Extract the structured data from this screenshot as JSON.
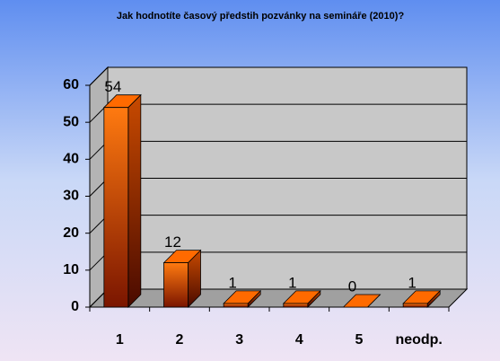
{
  "chart_data": {
    "type": "bar3d",
    "title": "Jak hodnotíte časový předstih pozvánky na semináře (2010)?",
    "categories": [
      "1",
      "2",
      "3",
      "4",
      "5",
      "neodp."
    ],
    "values": [
      54,
      12,
      1,
      1,
      0,
      1
    ],
    "color": "#ff6a00",
    "ylim": [
      0,
      60
    ],
    "yticks": [
      0,
      10,
      20,
      30,
      40,
      50,
      60
    ],
    "grid": true
  }
}
